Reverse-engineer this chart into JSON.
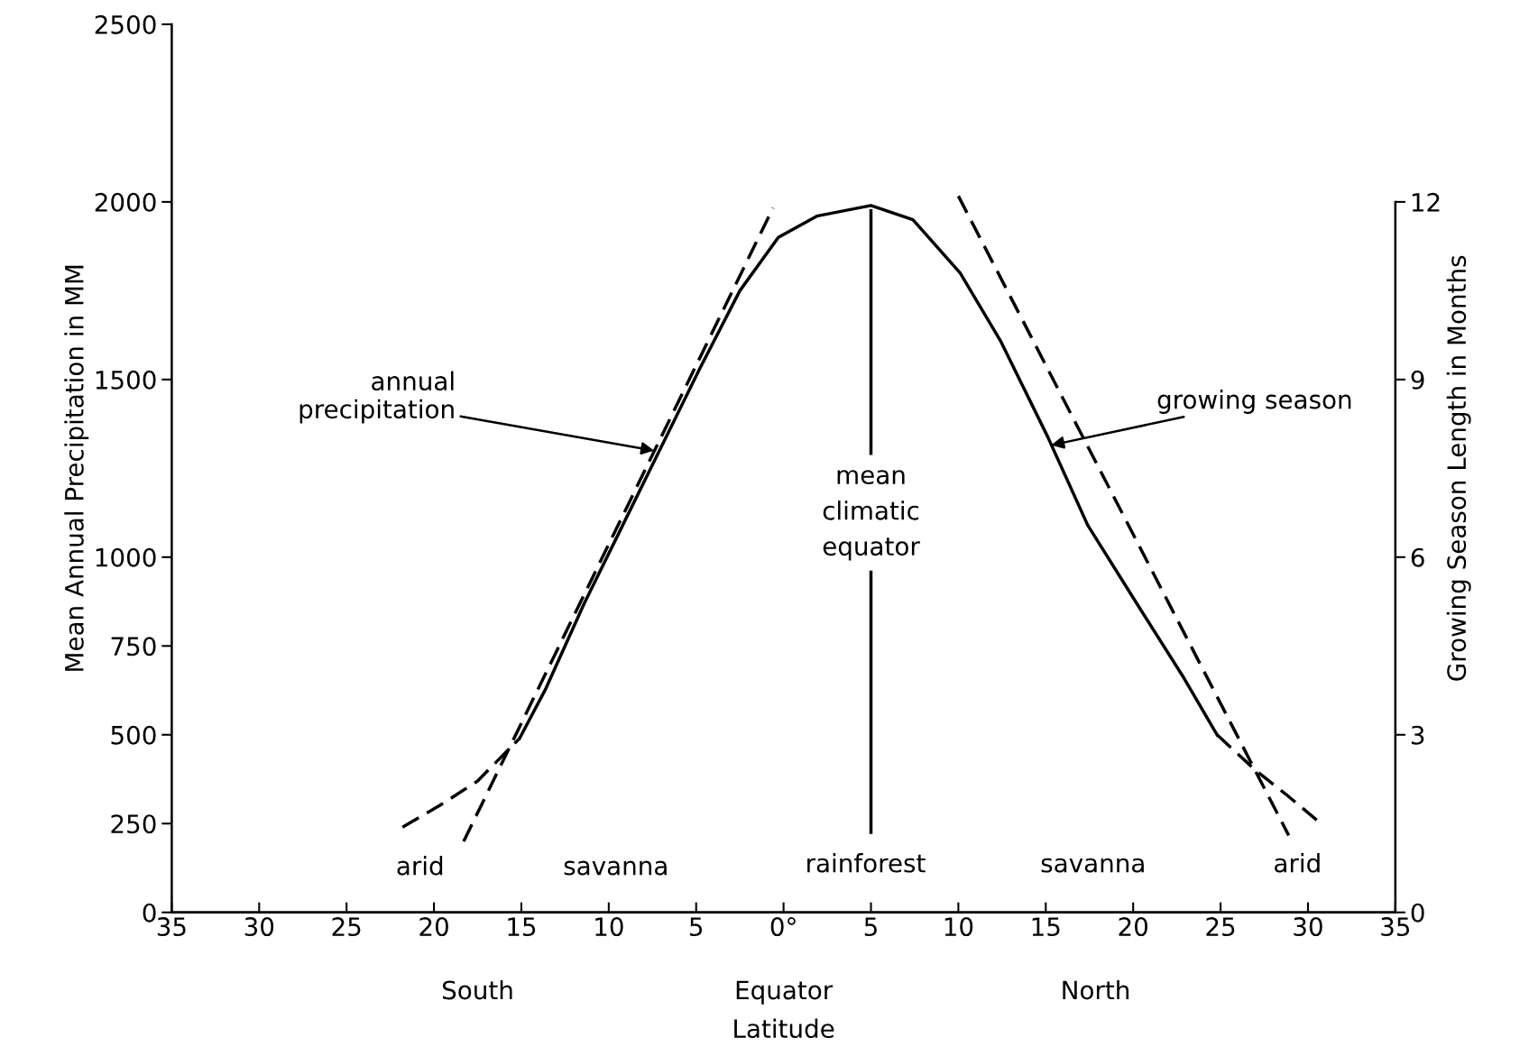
{
  "chart_data": {
    "type": "line",
    "xlabel": "Latitude",
    "ylabel": "Mean Annual Precipitation in MM",
    "y2label": "Growing Season Length in Months",
    "xlim": [
      -35,
      35
    ],
    "xticks": [
      {
        "value": -35,
        "label": "35"
      },
      {
        "value": -30,
        "label": "30"
      },
      {
        "value": -25,
        "label": "25"
      },
      {
        "value": -20,
        "label": "20"
      },
      {
        "value": -15,
        "label": "15"
      },
      {
        "value": -10,
        "label": "10"
      },
      {
        "value": -5,
        "label": "5"
      },
      {
        "value": 0,
        "label": "0°"
      },
      5,
      10,
      15,
      20,
      25,
      30,
      35
    ],
    "ylim": [
      0,
      2500
    ],
    "yticks": [
      0,
      250,
      500,
      750,
      1000,
      1500,
      2000,
      2500
    ],
    "y2lim": [
      0,
      15
    ],
    "y2ticks": [
      0,
      3,
      6,
      9,
      12
    ],
    "grid": false,
    "series": [
      {
        "color": "#000000",
        "line_style": "solid",
        "x": [
          -15.1,
          -13.6,
          -11.4,
          -9.2,
          -7.0,
          -4.8,
          -2.5,
          -0.3,
          1.9,
          5.0,
          7.4,
          10.1,
          12.4,
          15.1,
          17.4,
          20.2,
          22.9,
          24.8
        ],
        "values": [
          490,
          630,
          870,
          1090,
          1310,
          1530,
          1750,
          1900,
          1960,
          1990,
          1950,
          1800,
          1610,
          1340,
          1090,
          870,
          660,
          500
        ]
      },
      {
        "color": "#000000",
        "line_style": "dashed",
        "x": [
          -21.8,
          -19.7,
          -17.5,
          -15.1,
          null,
          24.8,
          27.0,
          28.8,
          30.5
        ],
        "values": [
          240,
          300,
          370,
          490,
          null,
          500,
          400,
          330,
          260
        ]
      },
      {
        "color": "#000000",
        "line_style": "dashed",
        "axis": "y2",
        "x": [
          -18.3,
          -0.6,
          4.7,
          10.0,
          28.9
        ],
        "values": [
          1.2,
          11.9,
          null,
          12.1,
          1.3
        ]
      }
    ],
    "ref_lines": [
      {
        "axis": "x",
        "value": 5,
        "label": "mean\nclimatic\nequator",
        "color": "#000000",
        "line_style": "solid"
      }
    ],
    "annotations": [
      {
        "text": "annual\n      precipitation",
        "x": -7.4,
        "y": 1300
      },
      {
        "text": "growing season",
        "x": 15.3,
        "y": 1315
      },
      "arid",
      "savanna",
      "rainforest",
      "savanna",
      "arid",
      "South",
      "Equator",
      "North"
    ]
  }
}
